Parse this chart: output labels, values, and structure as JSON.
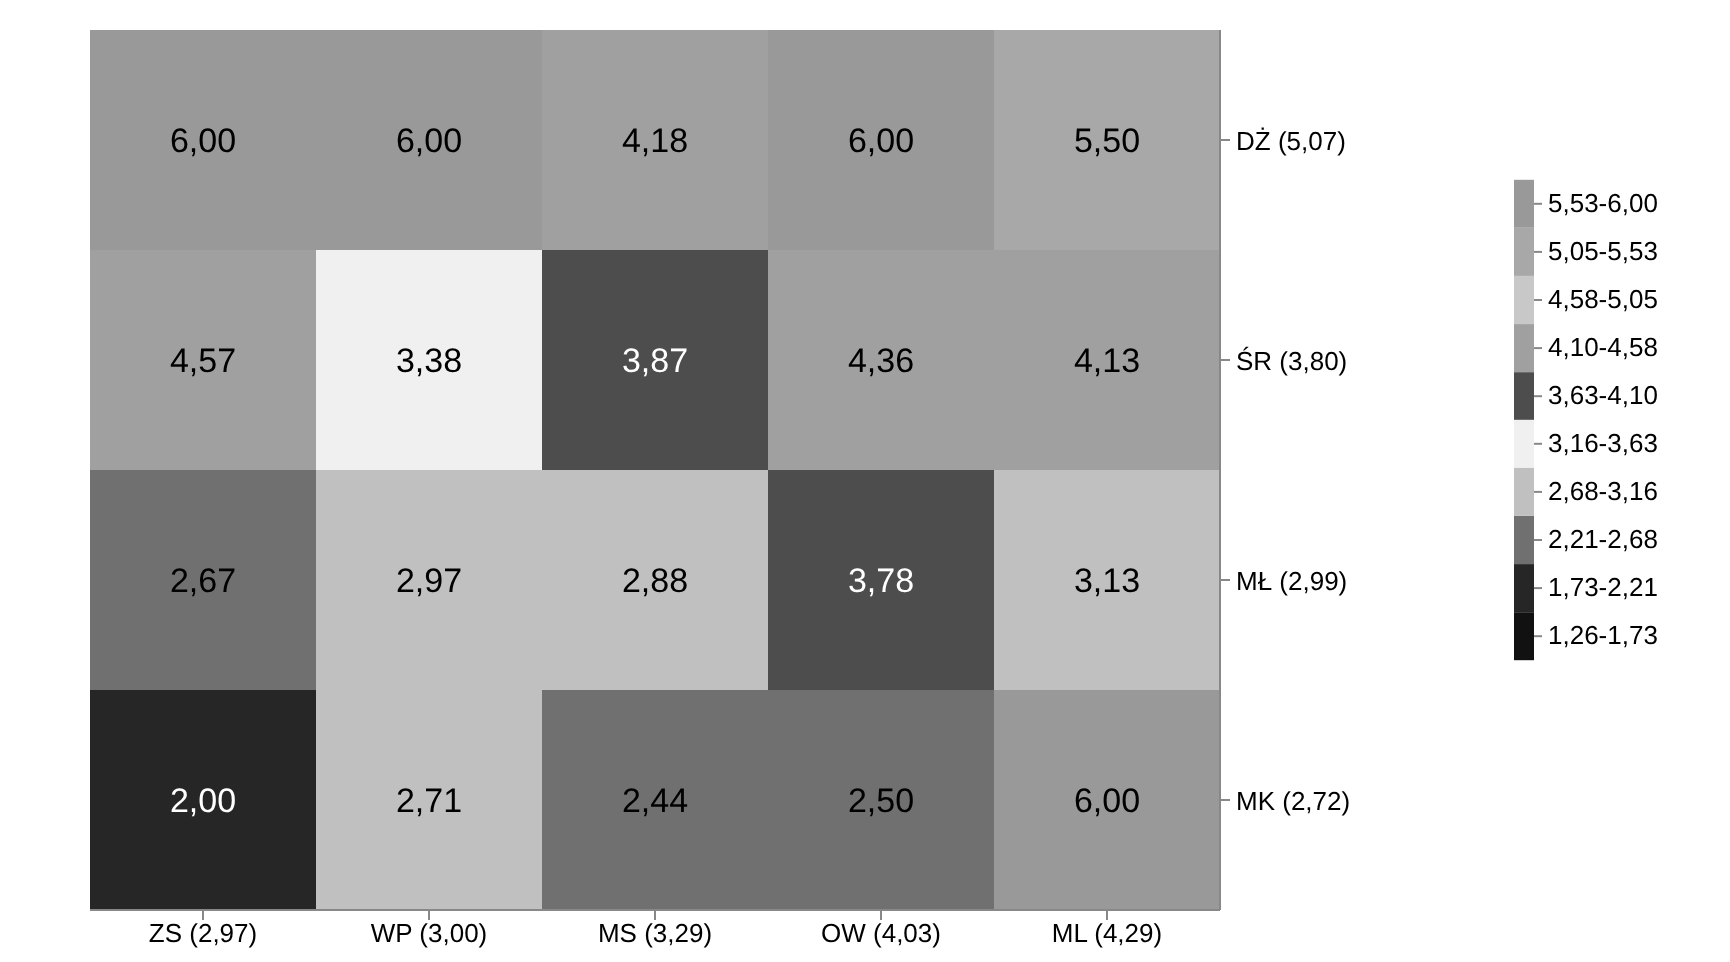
{
  "chart_data": {
    "type": "heatmap",
    "categories": [
      "ZS (2,97)",
      "WP (3,00)",
      "MS (3,29)",
      "OW (4,03)",
      "ML (4,29)"
    ],
    "y_categories": [
      "DŻ (5,07)",
      "ŚR (3,80)",
      "MŁ (2,99)",
      "MK (2,72)"
    ],
    "cells": [
      [
        6.0,
        6.0,
        4.18,
        6.0,
        5.5
      ],
      [
        4.57,
        3.38,
        3.87,
        4.36,
        4.13
      ],
      [
        2.67,
        2.97,
        2.88,
        3.78,
        3.13
      ],
      [
        2.0,
        2.71,
        2.44,
        2.5,
        6.0
      ]
    ],
    "cell_labels": [
      [
        "6,00",
        "6,00",
        "4,18",
        "6,00",
        "5,50"
      ],
      [
        "4,57",
        "3,38",
        "3,87",
        "4,36",
        "4,13"
      ],
      [
        "2,67",
        "2,97",
        "2,88",
        "3,78",
        "3,13"
      ],
      [
        "2,00",
        "2,71",
        "2,44",
        "2,50",
        "6,00"
      ]
    ],
    "clim": [
      1.26,
      6.0
    ],
    "cticks": [
      {
        "value": 5.765,
        "label": "5,53-6,00"
      },
      {
        "value": 5.29,
        "label": "5,05-5,53"
      },
      {
        "value": 4.815,
        "label": "4,58-5,05"
      },
      {
        "value": 4.34,
        "label": "4,10-4,58"
      },
      {
        "value": 3.865,
        "label": "3,63-4,10"
      },
      {
        "value": 3.395,
        "label": "3,16-3,63"
      },
      {
        "value": 2.92,
        "label": "2,68-3,16"
      },
      {
        "value": 2.445,
        "label": "2,21-2,68"
      },
      {
        "value": 1.97,
        "label": "1,73-2,21"
      },
      {
        "value": 1.495,
        "label": "1,26-1,73"
      }
    ],
    "colors": [
      "#999999",
      "#a8a8a8",
      "#c8c8c8",
      "#a0a0a0",
      "#4d4d4d",
      "#f0f0f0",
      "#c0c0c0",
      "#707070",
      "#262626",
      "#111111"
    ]
  }
}
